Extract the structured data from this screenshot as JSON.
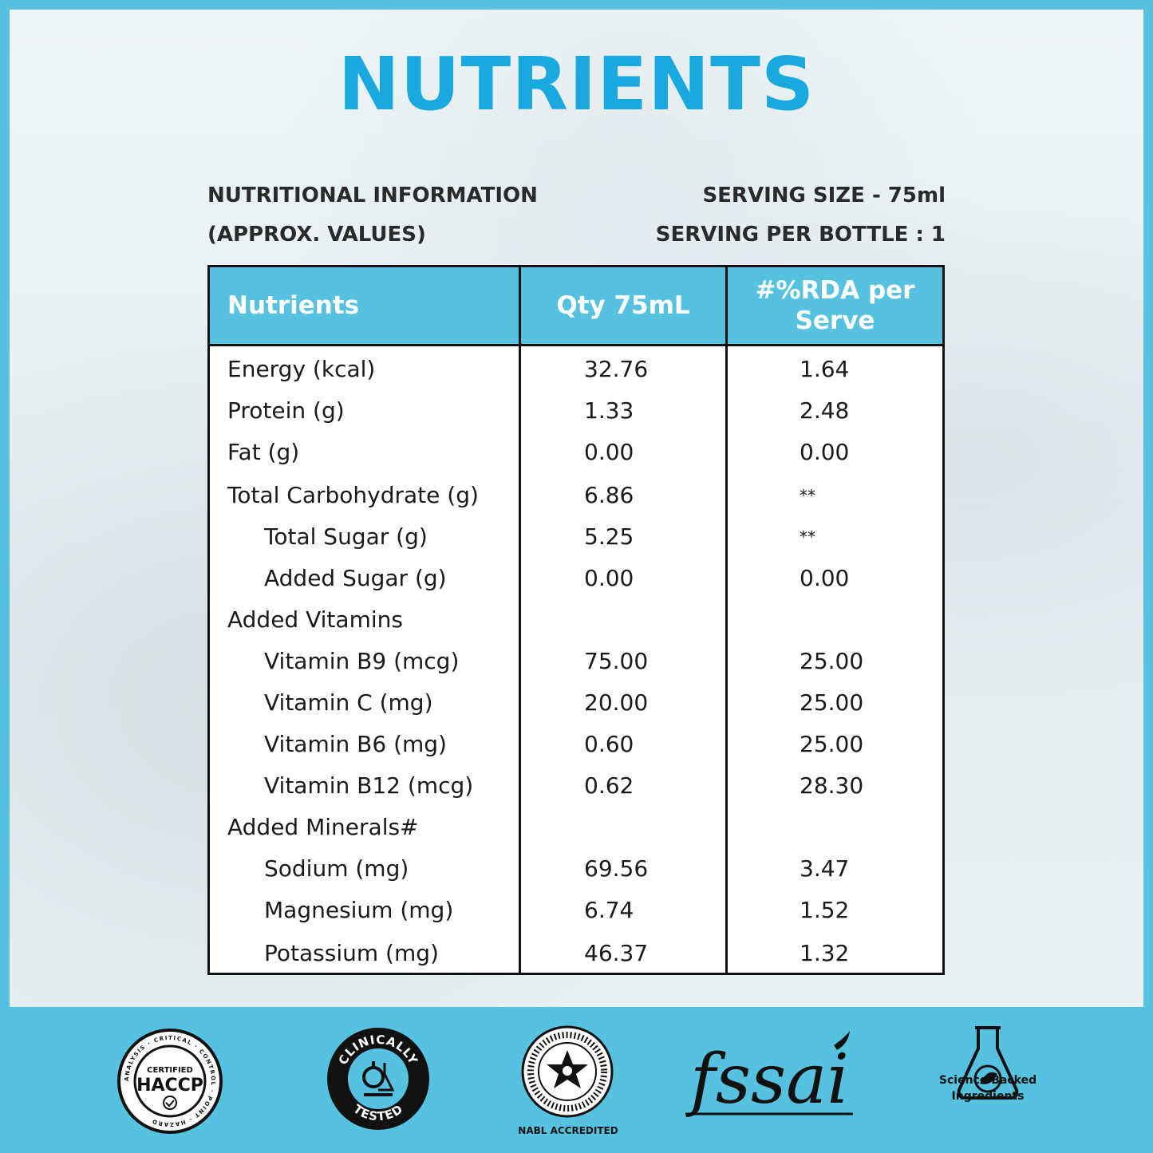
{
  "title": "NUTRIENTS",
  "info": {
    "left_line_1": "NUTRITIONAL INFORMATION",
    "left_line_2": "(APPROX. VALUES)",
    "right_line_1": "SERVING SIZE - 75ml",
    "right_line_2": "SERVING PER BOTTLE : 1"
  },
  "table": {
    "headers": [
      "Nutrients",
      "Qty 75mL",
      "#%RDA per Serve"
    ],
    "rows": [
      {
        "name": "Energy (kcal)",
        "qty": "32.76",
        "rda": "1.64"
      },
      {
        "name": "Protein (g)",
        "qty": "1.33",
        "rda": "2.48"
      },
      {
        "name": "Fat (g)",
        "qty": "0.00",
        "rda": "0.00"
      },
      {
        "name": "Total Carbohydrate (g)",
        "qty": "6.86",
        "rda": "**"
      },
      {
        "name": "Total Sugar (g)",
        "qty": "5.25",
        "rda": "**"
      },
      {
        "name": "Added Sugar (g)",
        "qty": "0.00",
        "rda": "0.00"
      },
      {
        "name": "Added Vitamins",
        "qty": "",
        "rda": ""
      },
      {
        "name": "Vitamin B9 (mcg)",
        "qty": "75.00",
        "rda": "25.00"
      },
      {
        "name": "Vitamin C (mg)",
        "qty": "20.00",
        "rda": "25.00"
      },
      {
        "name": "Vitamin B6 (mg)",
        "qty": "0.60",
        "rda": "25.00"
      },
      {
        "name": "Vitamin B12 (mcg)",
        "qty": "0.62",
        "rda": "28.30"
      },
      {
        "name": "Added Minerals#",
        "qty": "",
        "rda": ""
      },
      {
        "name": "Sodium (mg)",
        "qty": "69.56",
        "rda": "3.47"
      },
      {
        "name": "Magnesium (mg)",
        "qty": "6.74",
        "rda": "1.52"
      },
      {
        "name": "Potassium (mg)",
        "qty": "46.37",
        "rda": "1.32"
      }
    ]
  },
  "badges": {
    "haccp": {
      "icon": "haccp-seal-icon",
      "ring_text": "ANALYSIS · CRITICAL · CONTROL · POINT · HAZARD",
      "top": "CERTIFIED",
      "main": "HACCP"
    },
    "clinical": {
      "icon": "clinically-tested-icon",
      "top": "CLINICALLY",
      "bottom": "TESTED"
    },
    "nabl": {
      "icon": "nabl-seal-icon",
      "label": "NABL ACCREDITED"
    },
    "fssai": {
      "icon": "fssai-logo-icon",
      "text": "fssai"
    },
    "science": {
      "icon": "science-flask-icon",
      "label_line_1": "Science Backed",
      "label_line_2": "Ingredients"
    }
  },
  "colors": {
    "accent": "#56c2e0",
    "title": "#1aa9df",
    "text": "#1a1a1a"
  }
}
